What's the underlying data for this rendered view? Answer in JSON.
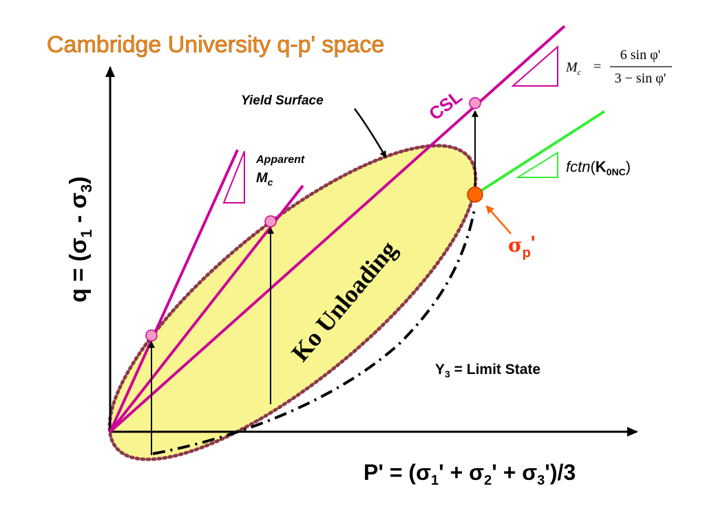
{
  "title": "Cambridge University q-p' space",
  "labels": {
    "yield_surface": "Yield Surface",
    "csl": "CSL",
    "apparent": "Apparent",
    "mc": {
      "main": "M",
      "sub": "c"
    },
    "ko_unloading": "Ko Unloading",
    "limit_state": {
      "main": "Y",
      "sub": "3",
      "rest": " = Limit State"
    },
    "sigma_p": {
      "main": "σ",
      "sub": "p",
      "rest": "'"
    },
    "fctn": {
      "func": "fctn",
      "open": "(",
      "main": "K",
      "sub": "0NC",
      "close": ")"
    },
    "formula": {
      "lhs": "M",
      "lhs_sub": "c",
      "eq": "=",
      "num": "6 sin φ'",
      "den": "3 − sin φ'"
    }
  },
  "axes": {
    "y_label": [
      "q  =  (σ",
      "1",
      " - σ",
      "3",
      ")"
    ],
    "x_label": [
      "P' = (σ",
      "1",
      "' + σ",
      "2",
      "' + σ",
      "3",
      "')/3"
    ]
  }
}
